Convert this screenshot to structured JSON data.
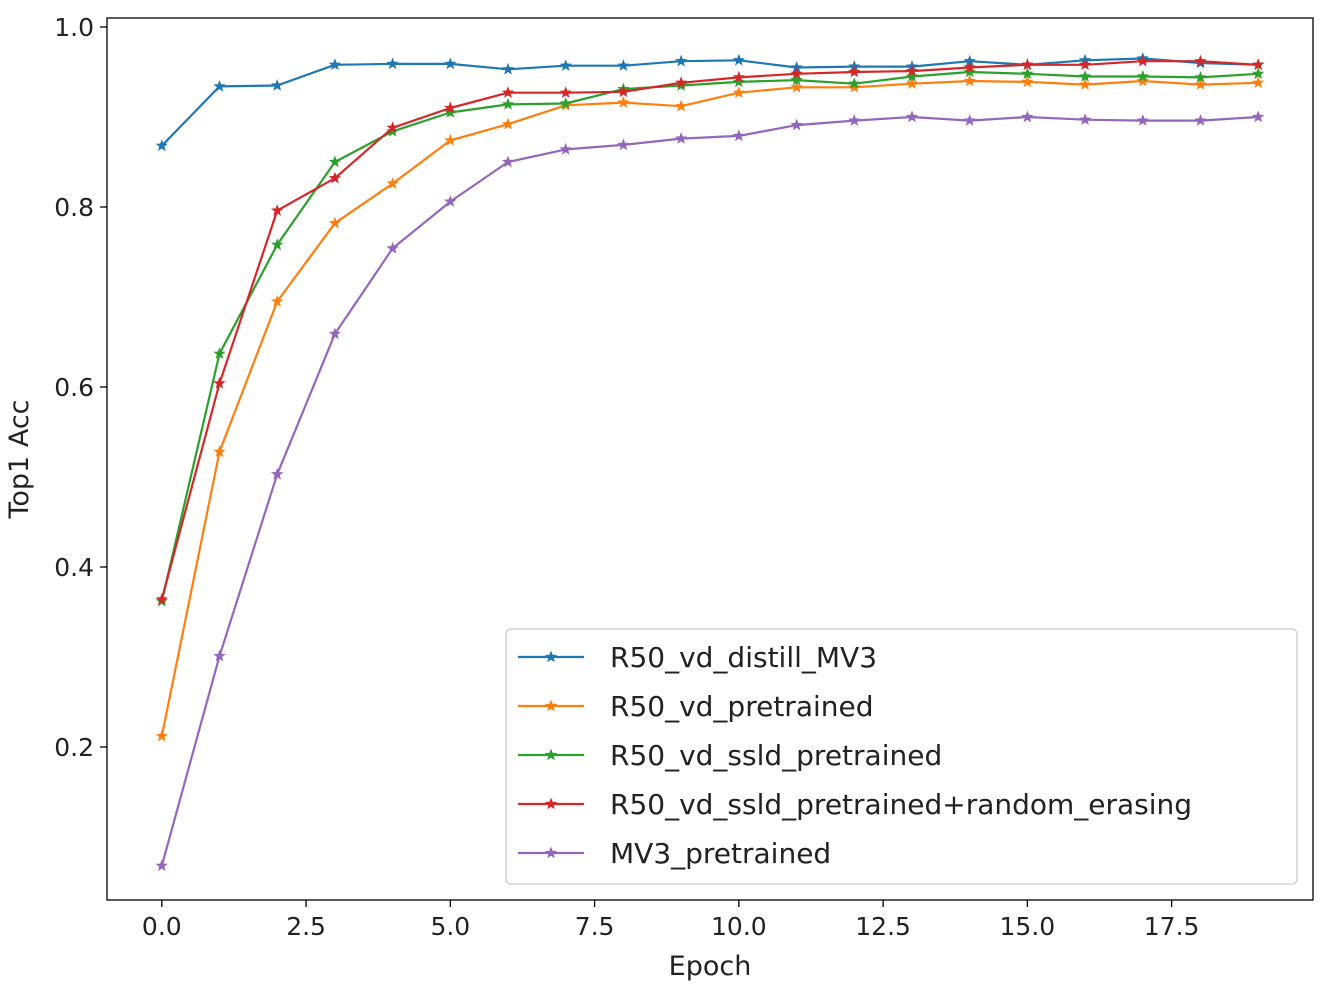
{
  "chart_data": {
    "type": "line",
    "title": "",
    "xlabel": "Epoch",
    "ylabel": "Top1 Acc",
    "xlim": [
      -0.95,
      19.95
    ],
    "ylim": [
      0.03,
      1.01
    ],
    "x_ticks": [
      0.0,
      2.5,
      5.0,
      7.5,
      10.0,
      12.5,
      15.0,
      17.5
    ],
    "x_tick_labels": [
      "0.0",
      "2.5",
      "5.0",
      "7.5",
      "10.0",
      "12.5",
      "15.0",
      "17.5"
    ],
    "y_ticks": [
      0.2,
      0.4,
      0.6,
      0.8,
      1.0
    ],
    "y_tick_labels": [
      "0.2",
      "0.4",
      "0.6",
      "0.8",
      "1.0"
    ],
    "grid": false,
    "legend_position": "lower-right",
    "marker": "star",
    "x": [
      0,
      1,
      2,
      3,
      4,
      5,
      6,
      7,
      8,
      9,
      10,
      11,
      12,
      13,
      14,
      15,
      16,
      17,
      18,
      19
    ],
    "series": [
      {
        "name": "R50_vd_distill_MV3",
        "color": "#1f77b4",
        "values": [
          0.868,
          0.934,
          0.935,
          0.958,
          0.959,
          0.959,
          0.953,
          0.957,
          0.957,
          0.962,
          0.963,
          0.955,
          0.956,
          0.956,
          0.962,
          0.958,
          0.963,
          0.965,
          0.96,
          0.958
        ]
      },
      {
        "name": "R50_vd_pretrained",
        "color": "#ff7f0e",
        "values": [
          0.212,
          0.528,
          0.695,
          0.782,
          0.826,
          0.874,
          0.892,
          0.913,
          0.916,
          0.912,
          0.927,
          0.933,
          0.933,
          0.937,
          0.94,
          0.939,
          0.936,
          0.94,
          0.936,
          0.938
        ]
      },
      {
        "name": "R50_vd_ssld_pretrained",
        "color": "#2ca02c",
        "values": [
          0.362,
          0.637,
          0.758,
          0.85,
          0.884,
          0.905,
          0.914,
          0.915,
          0.931,
          0.935,
          0.939,
          0.941,
          0.937,
          0.945,
          0.95,
          0.948,
          0.945,
          0.945,
          0.944,
          0.948
        ]
      },
      {
        "name": "R50_vd_ssld_pretrained+random_erasing",
        "color": "#d62728",
        "values": [
          0.364,
          0.604,
          0.796,
          0.832,
          0.888,
          0.91,
          0.927,
          0.927,
          0.928,
          0.938,
          0.944,
          0.948,
          0.95,
          0.951,
          0.955,
          0.958,
          0.958,
          0.962,
          0.962,
          0.958
        ]
      },
      {
        "name": "MV3_pretrained",
        "color": "#9467bd",
        "values": [
          0.068,
          0.301,
          0.503,
          0.659,
          0.754,
          0.806,
          0.85,
          0.864,
          0.869,
          0.876,
          0.879,
          0.891,
          0.896,
          0.9,
          0.896,
          0.9,
          0.897,
          0.896,
          0.896,
          0.9
        ]
      }
    ]
  }
}
